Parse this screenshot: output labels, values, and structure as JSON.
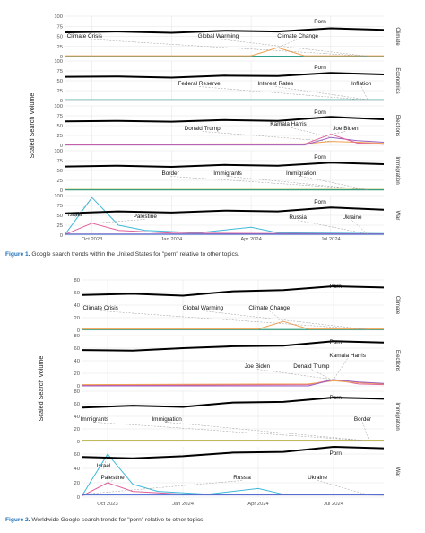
{
  "figure1": {
    "caption_label": "Figure 1.",
    "caption_text": " Google search trends within the United States for \"porn\" relative to other topics.",
    "ylabel": "Scaled Search Volume",
    "x_ticks": [
      "Oct 2023",
      "Jan 2024",
      "Apr 2024",
      "Jul 2024"
    ]
  },
  "figure2": {
    "caption_label": "Figure 2.",
    "caption_text": " Worldwide Google search trends for \"porn\" relative to other topics.",
    "ylabel": "Scaled Search Volume",
    "x_ticks": [
      "Oct 2023",
      "Jan 2024",
      "Apr 2024",
      "Jul 2024"
    ]
  },
  "colors": {
    "porn": "#000000",
    "green": "#5aa02c",
    "orange": "#f0a050",
    "teal": "#2f9e8f",
    "blue": "#4a6fd0",
    "pink": "#e0609a",
    "purple": "#9a5fc0",
    "olive": "#b8b040",
    "cyan": "#3fb8d8",
    "red": "#d04040",
    "gridline": "#e6e6e6",
    "leader": "#9a9a9a"
  },
  "chart_data": [
    {
      "id": "fig1-climate",
      "type": "line",
      "panel_label": "Climate",
      "y_ticks": [
        "100",
        "75",
        "50",
        "25",
        "0"
      ],
      "ylim": [
        0,
        100
      ],
      "x_range": [
        "2023-09",
        "2024-09"
      ],
      "series": [
        {
          "name": "Porn",
          "color": "#000000",
          "x": [
            "2023-09",
            "2023-11",
            "2024-01",
            "2024-03",
            "2024-05",
            "2024-07",
            "2024-09"
          ],
          "y": [
            60,
            62,
            59,
            64,
            62,
            70,
            66
          ]
        },
        {
          "name": "Climate Crisis",
          "color": "#5aa02c",
          "x": [
            "2023-09",
            "2024-09"
          ],
          "y": [
            1,
            1
          ]
        },
        {
          "name": "Global Warming",
          "color": "#2f9e8f",
          "x": [
            "2023-09",
            "2024-09"
          ],
          "y": [
            1,
            1
          ]
        },
        {
          "name": "Climate Change",
          "color": "#f0a050",
          "x": [
            "2023-09",
            "2024-04",
            "2024-05",
            "2024-06",
            "2024-09"
          ],
          "y": [
            2,
            2,
            22,
            2,
            2
          ]
        }
      ]
    },
    {
      "id": "fig1-economics",
      "type": "line",
      "panel_label": "Economics",
      "y_ticks": [
        "100",
        "75",
        "50",
        "25",
        "0"
      ],
      "ylim": [
        0,
        100
      ],
      "x_range": [
        "2023-09",
        "2024-09"
      ],
      "series": [
        {
          "name": "Porn",
          "color": "#000000",
          "x": [
            "2023-09",
            "2023-11",
            "2024-01",
            "2024-03",
            "2024-05",
            "2024-07",
            "2024-09"
          ],
          "y": [
            60,
            61,
            58,
            63,
            62,
            70,
            66
          ]
        },
        {
          "name": "Federal Reserve",
          "color": "#5aa02c",
          "x": [
            "2023-09",
            "2024-09"
          ],
          "y": [
            1,
            1
          ]
        },
        {
          "name": "Interest Rates",
          "color": "#2f9e8f",
          "x": [
            "2023-09",
            "2024-09"
          ],
          "y": [
            2,
            2
          ]
        },
        {
          "name": "Inflation",
          "color": "#4a6fd0",
          "x": [
            "2023-09",
            "2024-09"
          ],
          "y": [
            1,
            1
          ]
        }
      ]
    },
    {
      "id": "fig1-elections",
      "type": "line",
      "panel_label": "Elections",
      "y_ticks": [
        "100",
        "75",
        "50",
        "25",
        "0"
      ],
      "ylim": [
        0,
        100
      ],
      "x_range": [
        "2023-09",
        "2024-09"
      ],
      "series": [
        {
          "name": "Porn",
          "color": "#000000",
          "x": [
            "2023-09",
            "2023-11",
            "2024-01",
            "2024-03",
            "2024-05",
            "2024-07",
            "2024-09"
          ],
          "y": [
            61,
            62,
            60,
            64,
            62,
            72,
            66
          ]
        },
        {
          "name": "Donald Trump",
          "color": "#f0a050",
          "x": [
            "2023-09",
            "2024-06",
            "2024-07",
            "2024-08",
            "2024-09"
          ],
          "y": [
            3,
            4,
            10,
            8,
            5
          ]
        },
        {
          "name": "Kamala Harris",
          "color": "#9a5fc0",
          "x": [
            "2023-09",
            "2024-06",
            "2024-07",
            "2024-08",
            "2024-09"
          ],
          "y": [
            1,
            1,
            20,
            12,
            8
          ]
        },
        {
          "name": "Joe Biden",
          "color": "#e0609a",
          "x": [
            "2023-09",
            "2024-06",
            "2024-07",
            "2024-08",
            "2024-09"
          ],
          "y": [
            2,
            3,
            28,
            6,
            3
          ]
        }
      ]
    },
    {
      "id": "fig1-immigration",
      "type": "line",
      "panel_label": "Immigration",
      "y_ticks": [
        "100",
        "75",
        "50",
        "25",
        "0"
      ],
      "ylim": [
        0,
        100
      ],
      "x_range": [
        "2023-09",
        "2024-09"
      ],
      "series": [
        {
          "name": "Porn",
          "color": "#000000",
          "x": [
            "2023-09",
            "2023-11",
            "2024-01",
            "2024-03",
            "2024-05",
            "2024-07",
            "2024-09"
          ],
          "y": [
            60,
            62,
            59,
            64,
            62,
            70,
            66
          ]
        },
        {
          "name": "Border",
          "color": "#b8b040",
          "x": [
            "2023-09",
            "2024-09"
          ],
          "y": [
            2,
            2
          ]
        },
        {
          "name": "Immigrants",
          "color": "#5aa02c",
          "x": [
            "2023-09",
            "2024-09"
          ],
          "y": [
            1,
            1
          ]
        },
        {
          "name": "Immigration",
          "color": "#2f9e8f",
          "x": [
            "2023-09",
            "2024-09"
          ],
          "y": [
            1,
            1
          ]
        }
      ]
    },
    {
      "id": "fig1-war",
      "type": "line",
      "panel_label": "War",
      "y_ticks": [
        "100",
        "75",
        "50",
        "25",
        "0"
      ],
      "ylim": [
        0,
        100
      ],
      "x_range": [
        "2023-09",
        "2024-09"
      ],
      "series": [
        {
          "name": "Porn",
          "color": "#000000",
          "x": [
            "2023-09",
            "2023-11",
            "2024-01",
            "2024-03",
            "2024-05",
            "2024-07",
            "2024-09"
          ],
          "y": [
            55,
            60,
            57,
            62,
            60,
            70,
            64
          ]
        },
        {
          "name": "Israel",
          "color": "#3fb8d8",
          "x": [
            "2023-09",
            "2023-10",
            "2023-11",
            "2023-12",
            "2024-02",
            "2024-04",
            "2024-05",
            "2024-09"
          ],
          "y": [
            3,
            95,
            25,
            12,
            6,
            20,
            6,
            4
          ]
        },
        {
          "name": "Palestine",
          "color": "#e0609a",
          "x": [
            "2023-09",
            "2023-10",
            "2023-11",
            "2024-01",
            "2024-09"
          ],
          "y": [
            2,
            30,
            12,
            5,
            3
          ]
        },
        {
          "name": "Russia",
          "color": "#9a5fc0",
          "x": [
            "2023-09",
            "2024-09"
          ],
          "y": [
            3,
            3
          ]
        },
        {
          "name": "Ukraine",
          "color": "#4a6fd0",
          "x": [
            "2023-09",
            "2024-09"
          ],
          "y": [
            2,
            2
          ]
        }
      ]
    },
    {
      "id": "fig2-climate",
      "type": "line",
      "panel_label": "Climate",
      "y_ticks": [
        "80",
        "60",
        "40",
        "20",
        "0"
      ],
      "ylim": [
        0,
        80
      ],
      "x_range": [
        "2023-09",
        "2024-09"
      ],
      "series": [
        {
          "name": "Porn",
          "color": "#000000",
          "x": [
            "2023-09",
            "2023-11",
            "2024-01",
            "2024-03",
            "2024-05",
            "2024-07",
            "2024-09"
          ],
          "y": [
            56,
            58,
            55,
            62,
            64,
            70,
            68
          ]
        },
        {
          "name": "Climate Crisis",
          "color": "#5aa02c",
          "x": [
            "2023-09",
            "2024-09"
          ],
          "y": [
            1,
            1
          ]
        },
        {
          "name": "Global Warming",
          "color": "#2f9e8f",
          "x": [
            "2023-09",
            "2024-09"
          ],
          "y": [
            1,
            1
          ]
        },
        {
          "name": "Climate Change",
          "color": "#f0a050",
          "x": [
            "2023-09",
            "2024-04",
            "2024-05",
            "2024-06",
            "2024-09"
          ],
          "y": [
            2,
            2,
            14,
            2,
            2
          ]
        }
      ]
    },
    {
      "id": "fig2-elections",
      "type": "line",
      "panel_label": "Elections",
      "y_ticks": [
        "80",
        "60",
        "40",
        "20",
        "0"
      ],
      "ylim": [
        0,
        80
      ],
      "x_range": [
        "2023-09",
        "2024-09"
      ],
      "series": [
        {
          "name": "Porn",
          "color": "#000000",
          "x": [
            "2023-09",
            "2023-11",
            "2024-01",
            "2024-03",
            "2024-05",
            "2024-07",
            "2024-09"
          ],
          "y": [
            57,
            56,
            60,
            63,
            64,
            71,
            69
          ]
        },
        {
          "name": "Joe Biden",
          "color": "#e0609a",
          "x": [
            "2023-09",
            "2024-06",
            "2024-07",
            "2024-08",
            "2024-09"
          ],
          "y": [
            1,
            2,
            10,
            3,
            2
          ]
        },
        {
          "name": "Donald Trump",
          "color": "#f0a050",
          "x": [
            "2023-09",
            "2024-06",
            "2024-07",
            "2024-08",
            "2024-09"
          ],
          "y": [
            2,
            3,
            8,
            5,
            3
          ]
        },
        {
          "name": "Kamala Harris",
          "color": "#9a5fc0",
          "x": [
            "2023-09",
            "2024-06",
            "2024-07",
            "2024-08",
            "2024-09"
          ],
          "y": [
            0,
            0,
            10,
            6,
            4
          ]
        }
      ]
    },
    {
      "id": "fig2-immigration",
      "type": "line",
      "panel_label": "Immigration",
      "y_ticks": [
        "80",
        "60",
        "40",
        "20",
        "0"
      ],
      "ylim": [
        0,
        80
      ],
      "x_range": [
        "2023-09",
        "2024-09"
      ],
      "series": [
        {
          "name": "Porn",
          "color": "#000000",
          "x": [
            "2023-09",
            "2023-11",
            "2024-01",
            "2024-03",
            "2024-05",
            "2024-07",
            "2024-09"
          ],
          "y": [
            54,
            57,
            55,
            62,
            63,
            70,
            68
          ]
        },
        {
          "name": "Immigrants",
          "color": "#5aa02c",
          "x": [
            "2023-09",
            "2024-09"
          ],
          "y": [
            1,
            1
          ]
        },
        {
          "name": "Immigration",
          "color": "#2f9e8f",
          "x": [
            "2023-09",
            "2024-09"
          ],
          "y": [
            1,
            1
          ]
        },
        {
          "name": "Border",
          "color": "#b8b040",
          "x": [
            "2023-09",
            "2024-09"
          ],
          "y": [
            2,
            2
          ]
        }
      ]
    },
    {
      "id": "fig2-war",
      "type": "line",
      "panel_label": "War",
      "y_ticks": [
        "60",
        "40",
        "20",
        "0"
      ],
      "ylim": [
        0,
        70
      ],
      "x_range": [
        "2023-09",
        "2024-09"
      ],
      "series": [
        {
          "name": "Porn",
          "color": "#000000",
          "x": [
            "2023-09",
            "2023-11",
            "2024-01",
            "2024-03",
            "2024-05",
            "2024-07",
            "2024-09"
          ],
          "y": [
            56,
            54,
            57,
            62,
            63,
            70,
            68
          ]
        },
        {
          "name": "Israel",
          "color": "#3fb8d8",
          "x": [
            "2023-09",
            "2023-10",
            "2023-11",
            "2023-12",
            "2024-02",
            "2024-04",
            "2024-05",
            "2024-09"
          ],
          "y": [
            3,
            60,
            18,
            8,
            4,
            12,
            4,
            3
          ]
        },
        {
          "name": "Palestine",
          "color": "#e0609a",
          "x": [
            "2023-09",
            "2023-10",
            "2023-11",
            "2024-01",
            "2024-09"
          ],
          "y": [
            2,
            20,
            8,
            4,
            3
          ]
        },
        {
          "name": "Russia",
          "color": "#9a5fc0",
          "x": [
            "2023-09",
            "2024-09"
          ],
          "y": [
            4,
            4
          ]
        },
        {
          "name": "Ukraine",
          "color": "#4a6fd0",
          "x": [
            "2023-09",
            "2024-09"
          ],
          "y": [
            3,
            3
          ]
        }
      ]
    }
  ]
}
